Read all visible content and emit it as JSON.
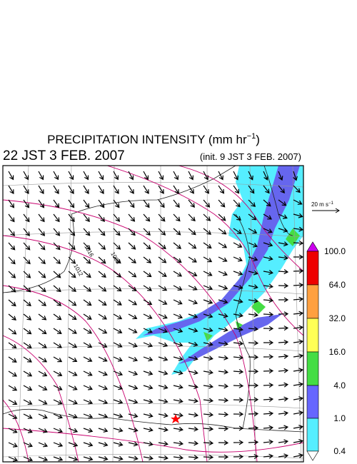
{
  "header": {
    "title": {
      "text": "PRECIPITATION INTENSITY (mm hr",
      "superscript": "−1",
      "suffix": ")"
    },
    "valid_time": "22 JST 3 FEB. 2007",
    "init_time": "(init. 9 JST 3 FEB. 2007)"
  },
  "wind_scale": {
    "text": "20 m s",
    "superscript": "−1"
  },
  "colorbar": {
    "labels": [
      "100.0",
      "64.0",
      "32.0",
      "16.0",
      "4.0",
      "1.0",
      "0.4"
    ]
  },
  "isobar_labels": [
    "1016",
    "1012",
    "1008"
  ]
}
